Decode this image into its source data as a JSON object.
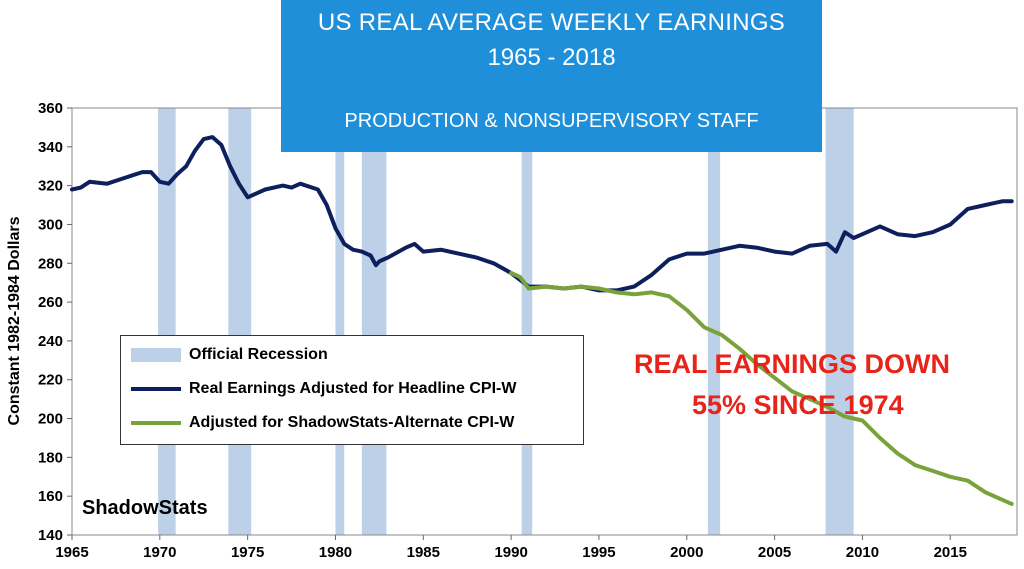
{
  "header": {
    "title_line1": "US REAL AVERAGE WEEKLY EARNINGS",
    "title_line2": "1965 - 2018",
    "subtitle": "PRODUCTION & NONSUPERVISORY STAFF"
  },
  "annotation": {
    "line1": "REAL EARNINGS DOWN",
    "line2": "55% SINCE 1974"
  },
  "watermark": "ShadowStats",
  "colors": {
    "headline": "#0d1f5c",
    "shadowstats": "#79a33a",
    "recession": "#bcd0e8",
    "title_bg": "#1e8fd8",
    "annotation": "#e8231a"
  },
  "chart_data": {
    "type": "line",
    "ylabel": "Constant 1982-1984 Dollars",
    "xlim": [
      1965,
      2018.8
    ],
    "ylim": [
      140,
      360
    ],
    "x_ticks": [
      1965,
      1970,
      1975,
      1980,
      1985,
      1990,
      1995,
      2000,
      2005,
      2010,
      2015
    ],
    "y_ticks": [
      140,
      160,
      180,
      200,
      220,
      240,
      260,
      280,
      300,
      320,
      340,
      360
    ],
    "recessions": [
      [
        1969.9,
        1970.9
      ],
      [
        1973.9,
        1975.2
      ],
      [
        1980.0,
        1980.5
      ],
      [
        1981.5,
        1982.9
      ],
      [
        1990.6,
        1991.2
      ],
      [
        2001.2,
        2001.9
      ],
      [
        2007.9,
        2009.5
      ]
    ],
    "legend": [
      "Official Recession",
      "Real Earnings Adjusted for Headline CPI-W",
      "Adjusted for ShadowStats-Alternate CPI-W"
    ],
    "series": [
      {
        "name": "Real Earnings Adjusted for Headline CPI-W",
        "x": [
          1965,
          1965.5,
          1966,
          1967,
          1968,
          1969,
          1969.5,
          1970,
          1970.5,
          1971,
          1971.5,
          1972,
          1972.5,
          1973,
          1973.5,
          1974,
          1974.5,
          1975,
          1975.5,
          1976,
          1977,
          1977.5,
          1978,
          1979,
          1979.5,
          1980,
          1980.5,
          1981,
          1981.5,
          1982,
          1982.3,
          1982.5,
          1983,
          1984,
          1984.5,
          1985,
          1986,
          1987,
          1988,
          1989,
          1990,
          1991,
          1992,
          1993,
          1994,
          1995,
          1996,
          1997,
          1998,
          1999,
          2000,
          2001,
          2002,
          2003,
          2004,
          2005,
          2006,
          2007,
          2008,
          2008.5,
          2009,
          2009.5,
          2010,
          2011,
          2012,
          2013,
          2014,
          2015,
          2016,
          2017,
          2017.5,
          2018,
          2018.5
        ],
        "values": [
          318,
          319,
          322,
          321,
          324,
          327,
          327,
          322,
          321,
          326,
          330,
          338,
          344,
          345,
          341,
          330,
          321,
          314,
          316,
          318,
          320,
          319,
          321,
          318,
          310,
          298,
          290,
          287,
          286,
          284,
          279,
          281,
          283,
          288,
          290,
          286,
          287,
          285,
          283,
          280,
          275,
          268,
          268,
          267,
          268,
          266,
          266,
          268,
          274,
          282,
          285,
          285,
          287,
          289,
          288,
          286,
          285,
          289,
          290,
          286,
          296,
          293,
          295,
          299,
          295,
          294,
          296,
          300,
          308,
          310,
          311,
          312,
          312
        ]
      },
      {
        "name": "Adjusted for ShadowStats-Alternate CPI-W",
        "x": [
          1990,
          1990.5,
          1991,
          1992,
          1993,
          1994,
          1995,
          1996,
          1997,
          1998,
          1999,
          2000,
          2001,
          2002,
          2003,
          2004,
          2005,
          2006,
          2007,
          2008,
          2009,
          2010,
          2011,
          2012,
          2013,
          2014,
          2015,
          2016,
          2017,
          2018,
          2018.5
        ],
        "values": [
          275,
          273,
          267,
          268,
          267,
          268,
          267,
          265,
          264,
          265,
          263,
          256,
          247,
          243,
          236,
          228,
          221,
          214,
          210,
          206,
          201,
          199,
          190,
          182,
          176,
          173,
          170,
          168,
          162,
          158,
          156
        ]
      }
    ]
  }
}
